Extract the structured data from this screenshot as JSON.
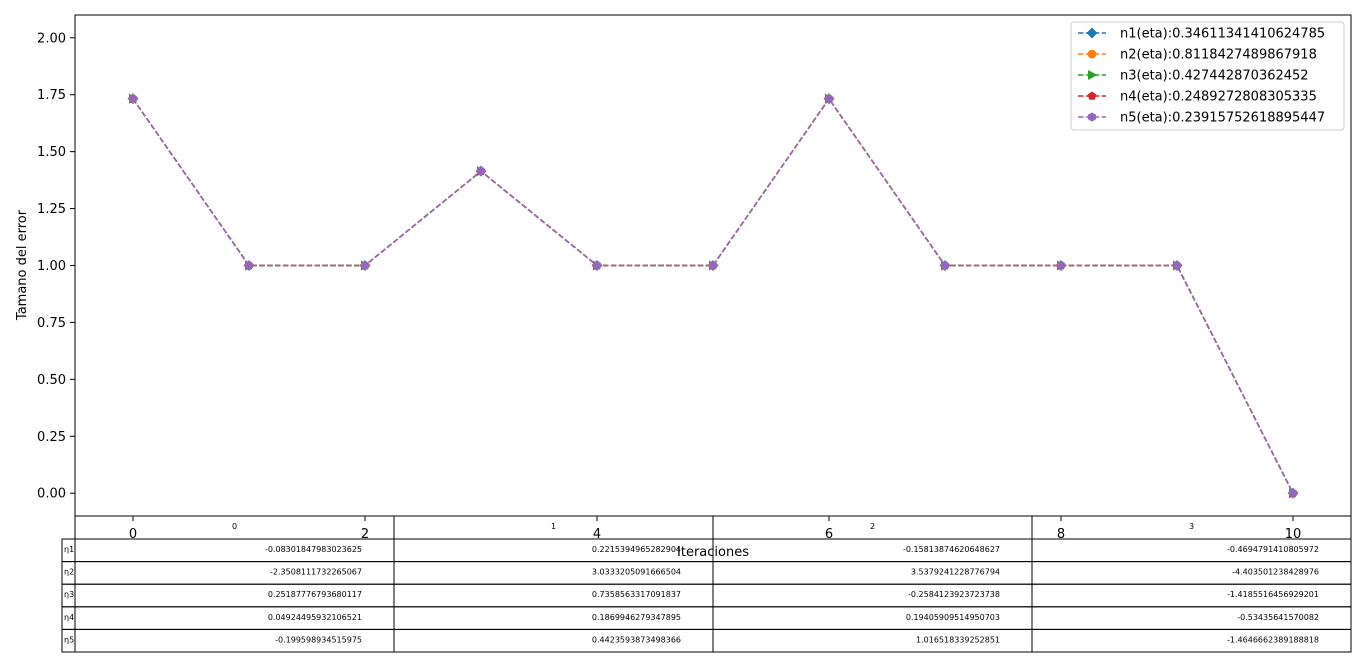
{
  "chart_data": {
    "type": "line",
    "title": "",
    "xlabel": "Iteraciones",
    "ylabel": "Tamano del error",
    "xlim": [
      -0.5,
      10.5
    ],
    "ylim": [
      -0.1,
      2.1
    ],
    "x_ticks": [
      0,
      2,
      4,
      6,
      8,
      10
    ],
    "y_ticks": [
      0.0,
      0.25,
      0.5,
      0.75,
      1.0,
      1.25,
      1.5,
      1.75,
      2.0
    ],
    "legend_position": "top-right",
    "x": [
      0,
      1,
      2,
      3,
      4,
      5,
      6,
      7,
      8,
      9,
      10
    ],
    "series": [
      {
        "name": "n1(eta):0.34611341410624785",
        "color": "#1f77b4",
        "marker": "diamond",
        "values": [
          1.7320508,
          1,
          1,
          1.4142136,
          1,
          1,
          1.7320508,
          1,
          1,
          1,
          0
        ]
      },
      {
        "name": "n2(eta):0.8118427489867918",
        "color": "#ff7f0e",
        "marker": "circle",
        "values": [
          1.7320508,
          1,
          1,
          1.4142136,
          1,
          1,
          1.7320508,
          1,
          1,
          1,
          0
        ]
      },
      {
        "name": "n3(eta):0.427442870362452",
        "color": "#2ca02c",
        "marker": "triangle-right",
        "values": [
          1.7320508,
          1,
          1,
          1.4142136,
          1,
          1,
          1.7320508,
          1,
          1,
          1,
          0
        ]
      },
      {
        "name": "n4(eta):0.2489272808305335",
        "color": "#d62728",
        "marker": "pentagon",
        "values": [
          1.7320508,
          1,
          1,
          1.4142136,
          1,
          1,
          1.7320508,
          1,
          1,
          1,
          0
        ]
      },
      {
        "name": "n5(eta):0.23915752618895447",
        "color": "#9467bd",
        "marker": "hexagon",
        "values": [
          1.7320508,
          1,
          1,
          1.4142136,
          1,
          1,
          1.7320508,
          1,
          1,
          1,
          0
        ]
      }
    ],
    "table": {
      "col_labels": [
        "0",
        "1",
        "2",
        "3"
      ],
      "row_labels": [
        "η1",
        "η2",
        "η3",
        "η4",
        "η5"
      ],
      "cells": [
        [
          "-0.08301847983023625",
          "0.2215394965282904",
          "-0.15813874620648627",
          "-0.4694791410805972"
        ],
        [
          "-2.3508111732265067",
          "3.0333205091666504",
          "3.5379241228776794",
          "-4.403501238428976"
        ],
        [
          "0.25187776793680117",
          "0.7358563317091837",
          "-0.2584123923723738",
          "-1.4185516456929201"
        ],
        [
          "0.04924495932106521",
          "0.1869946279347895",
          "0.19405909514950703",
          "-0.53435641570082"
        ],
        [
          "-0.199598934515975",
          "0.4423593873498366",
          "1.016518339252851",
          "-1.4646662389188818"
        ]
      ]
    }
  }
}
